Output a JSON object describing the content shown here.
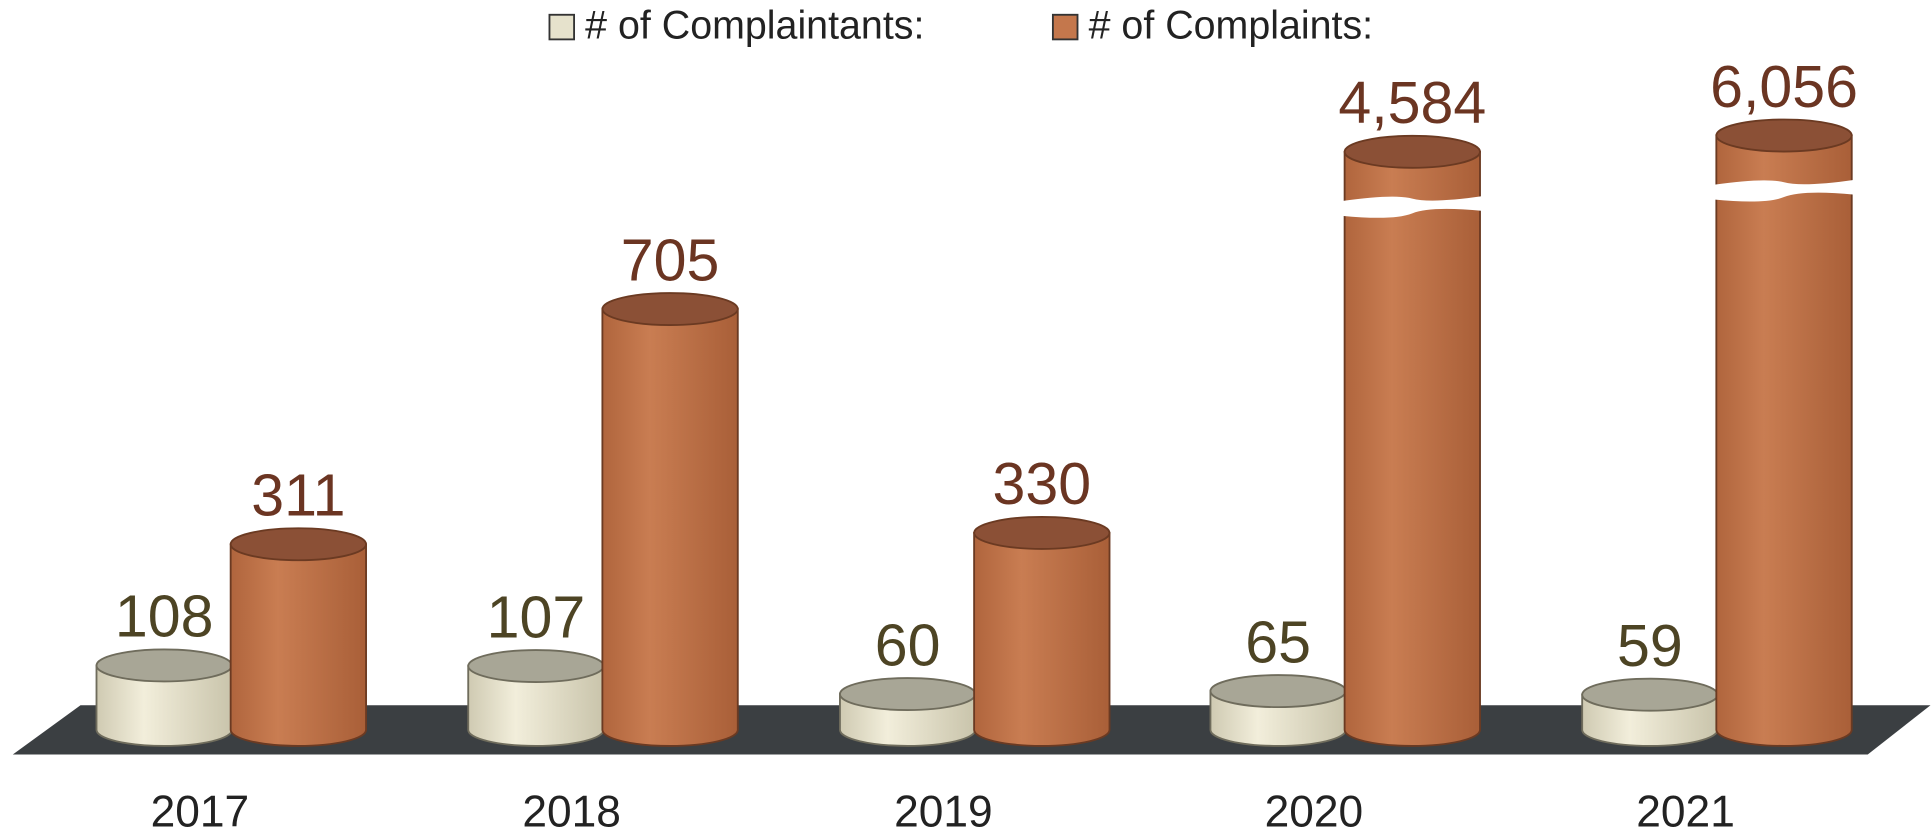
{
  "chart_data": {
    "type": "bar3d",
    "categories": [
      "2017",
      "2018",
      "2019",
      "2020",
      "2021"
    ],
    "series": [
      {
        "name": "# of Complaintants:",
        "color": "#e6e2cc",
        "values": [
          108,
          107,
          60,
          65,
          59
        ]
      },
      {
        "name": "# of Complaints:",
        "color": "#c4774c",
        "values": [
          311,
          705,
          330,
          4584,
          6056
        ],
        "value_labels": [
          "311",
          "705",
          "330",
          "4,584",
          "6,056"
        ]
      }
    ],
    "legend": "top"
  }
}
